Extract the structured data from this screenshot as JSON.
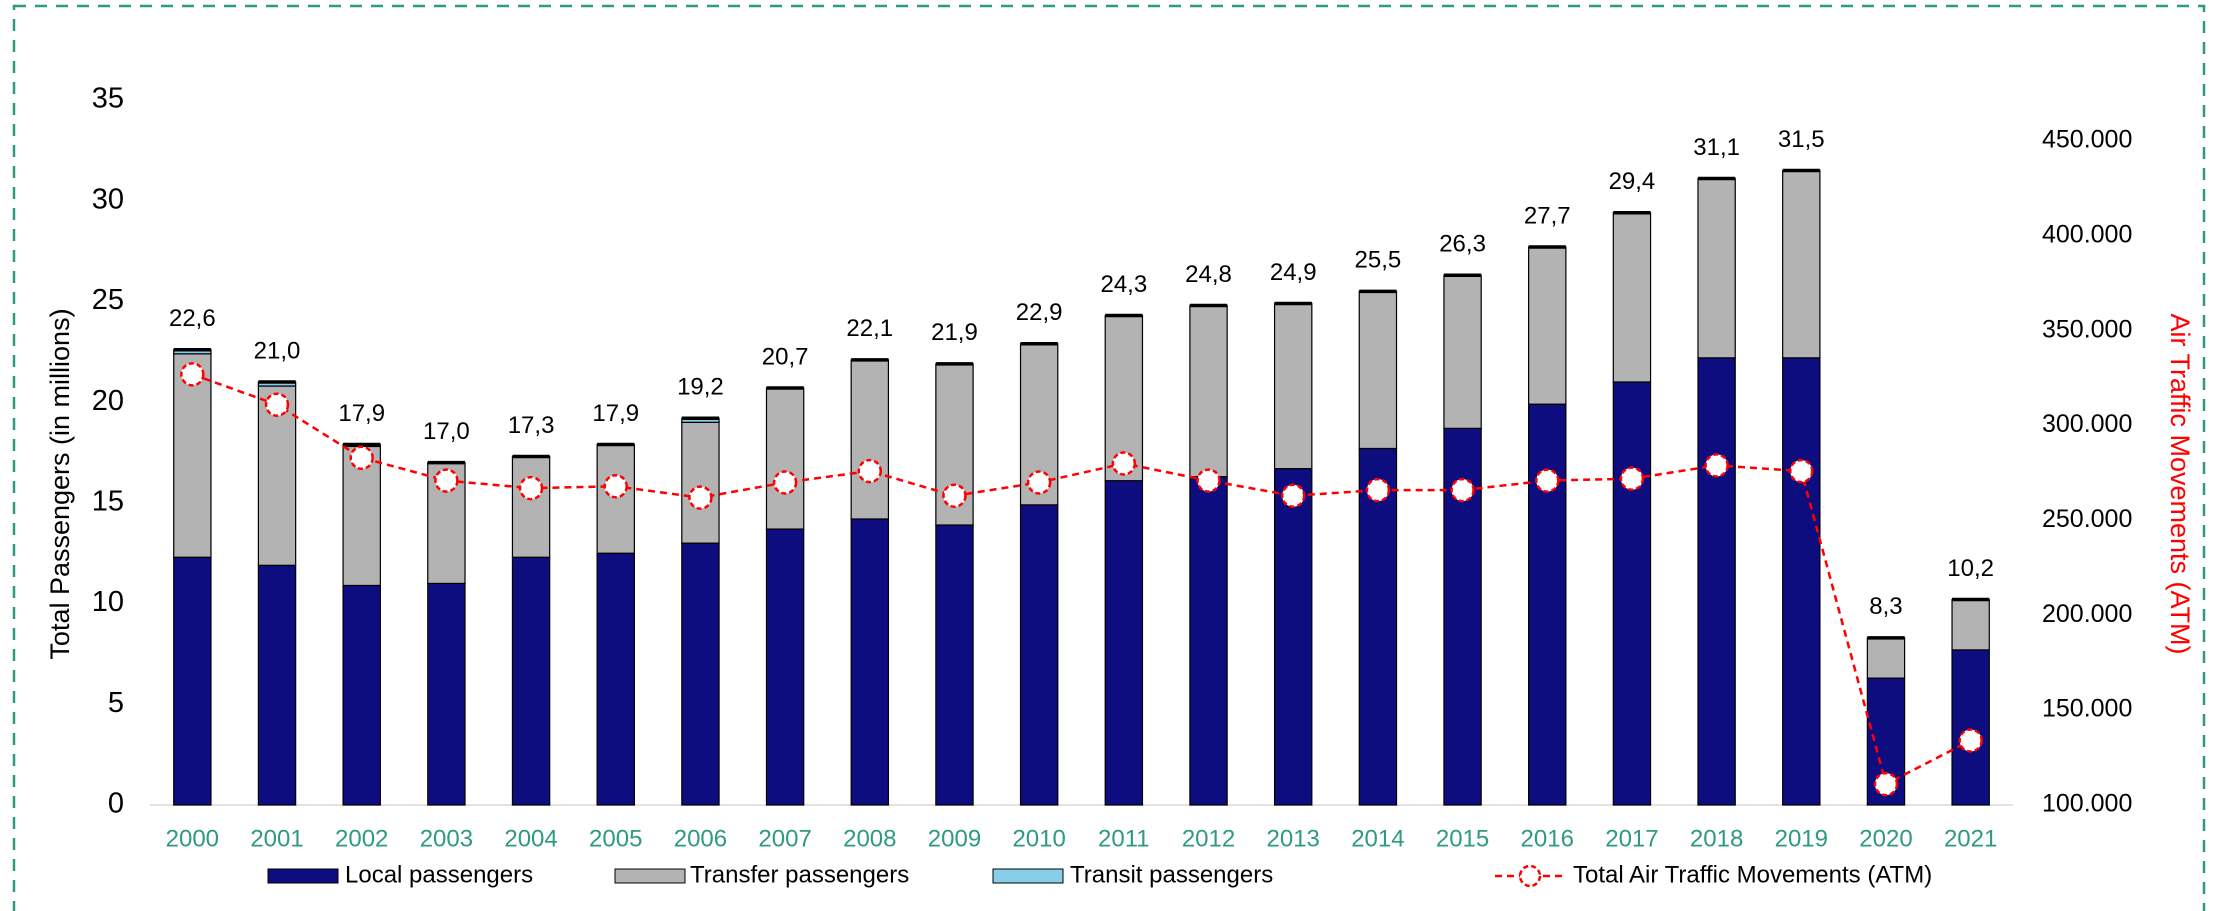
{
  "chart_data": {
    "type": "bar",
    "stacked": true,
    "y_axis_label": "Total Passengers (in millions)",
    "y2_axis_label": "Air Traffic Movements (ATM)",
    "categories": [
      "2000",
      "2001",
      "2002",
      "2003",
      "2004",
      "2005",
      "2006",
      "2007",
      "2008",
      "2009",
      "2010",
      "2011",
      "2012",
      "2013",
      "2014",
      "2015",
      "2016",
      "2017",
      "2018",
      "2019",
      "2020",
      "2021"
    ],
    "series": [
      {
        "name": "Local passengers",
        "color": "#0d0d80",
        "type": "bar",
        "values": [
          12.3,
          11.9,
          10.9,
          11.0,
          12.3,
          12.5,
          13.0,
          13.7,
          14.2,
          13.9,
          14.9,
          16.1,
          16.3,
          16.7,
          17.7,
          18.7,
          19.9,
          21.0,
          22.2,
          22.2,
          6.3,
          7.7
        ]
      },
      {
        "name": "Transfer passengers",
        "color": "#b3b3b3",
        "type": "bar",
        "values": [
          10.1,
          8.9,
          6.9,
          6.0,
          5.0,
          5.4,
          6.0,
          7.0,
          7.9,
          8.0,
          8.0,
          8.2,
          8.5,
          8.2,
          7.8,
          7.6,
          7.8,
          8.4,
          8.9,
          9.3,
          2.0,
          2.5
        ]
      },
      {
        "name": "Transit passengers",
        "color": "#87ceeb",
        "type": "bar",
        "values": [
          0.2,
          0.2,
          0.1,
          0,
          0,
          0,
          0.2,
          0,
          0,
          0,
          0,
          0,
          0,
          0,
          0,
          0,
          0,
          0,
          0,
          0,
          0,
          0
        ]
      },
      {
        "name": "Total Air Traffic Movements (ATM)",
        "color": "#ff0000",
        "type": "line",
        "axis": "y2",
        "values": [
          327000,
          311000,
          283000,
          271000,
          267000,
          268000,
          262000,
          270000,
          276000,
          263000,
          270000,
          280000,
          271000,
          263000,
          266000,
          266000,
          271000,
          272000,
          279000,
          276000,
          111000,
          134000
        ]
      }
    ],
    "totals": {
      "values": [
        22.6,
        21.0,
        17.9,
        17.0,
        17.3,
        17.9,
        19.2,
        20.7,
        22.1,
        21.9,
        22.9,
        24.3,
        24.8,
        24.9,
        25.5,
        26.3,
        27.7,
        29.4,
        31.1,
        31.5,
        8.3,
        10.2
      ],
      "value_labels": [
        "22,6",
        "21,0",
        "17,9",
        "17,0",
        "17,3",
        "17,9",
        "19,2",
        "20,7",
        "22,1",
        "21,9",
        "22,9",
        "24,3",
        "24,8",
        "24,9",
        "25,5",
        "26,3",
        "27,7",
        "29,4",
        "31,1",
        "31,5",
        "8,3",
        "10,2"
      ]
    },
    "ylim": [
      0,
      35
    ],
    "yticks": [
      0,
      5,
      10,
      15,
      20,
      25,
      30,
      35
    ],
    "y2lim": [
      100000,
      471600
    ],
    "y2ticks": [
      {
        "value": 100000,
        "label": "100.000"
      },
      {
        "value": 150000,
        "label": "150.000"
      },
      {
        "value": 200000,
        "label": "200.000"
      },
      {
        "value": 250000,
        "label": "250.000"
      },
      {
        "value": 300000,
        "label": "300.000"
      },
      {
        "value": 350000,
        "label": "350.000"
      },
      {
        "value": 400000,
        "label": "400.000"
      },
      {
        "value": 450000,
        "label": "450.000"
      }
    ],
    "grid": false,
    "legend": "bottom"
  }
}
